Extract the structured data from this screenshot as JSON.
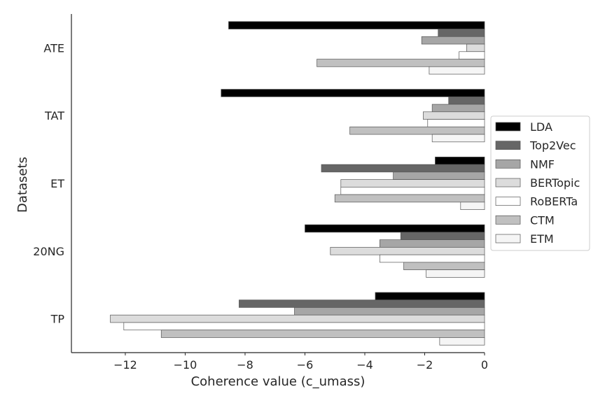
{
  "chart_data": {
    "type": "bar",
    "orientation": "horizontal",
    "xlabel": "Coherence value (c_umass)",
    "ylabel": "Datasets",
    "xlim": [
      -13.8,
      0
    ],
    "xticks": [
      -12,
      -10,
      -8,
      -6,
      -4,
      -2,
      0
    ],
    "xtick_labels": [
      "−12",
      "−10",
      "−8",
      "−6",
      "−4",
      "−2",
      "0"
    ],
    "categories": [
      "ATE",
      "TAT",
      "ET",
      "20NG",
      "TP"
    ],
    "grid": false,
    "legend_position": "center-right",
    "series": [
      {
        "name": "LDA",
        "color": "#000000",
        "values": [
          -8.55,
          -8.8,
          -1.65,
          -6.0,
          -3.65
        ]
      },
      {
        "name": "Top2Vec",
        "color": "#666666",
        "values": [
          -1.55,
          -1.2,
          -5.45,
          -2.8,
          -8.2
        ]
      },
      {
        "name": "NMF",
        "color": "#a6a6a6",
        "values": [
          -2.1,
          -1.75,
          -3.05,
          -3.5,
          -6.35
        ]
      },
      {
        "name": "BERTopic",
        "color": "#dcdcdc",
        "values": [
          -0.6,
          -2.05,
          -4.8,
          -5.15,
          -12.5
        ]
      },
      {
        "name": "RoBERTa",
        "color": "#ffffff",
        "values": [
          -0.85,
          -1.9,
          -4.8,
          -3.5,
          -12.05
        ]
      },
      {
        "name": "CTM",
        "color": "#c0c0c0",
        "values": [
          -5.6,
          -4.5,
          -5.0,
          -2.7,
          -10.8
        ]
      },
      {
        "name": "ETM",
        "color": "#f5f5f5",
        "values": [
          -1.85,
          -1.75,
          -0.8,
          -1.95,
          -1.5
        ]
      }
    ]
  }
}
